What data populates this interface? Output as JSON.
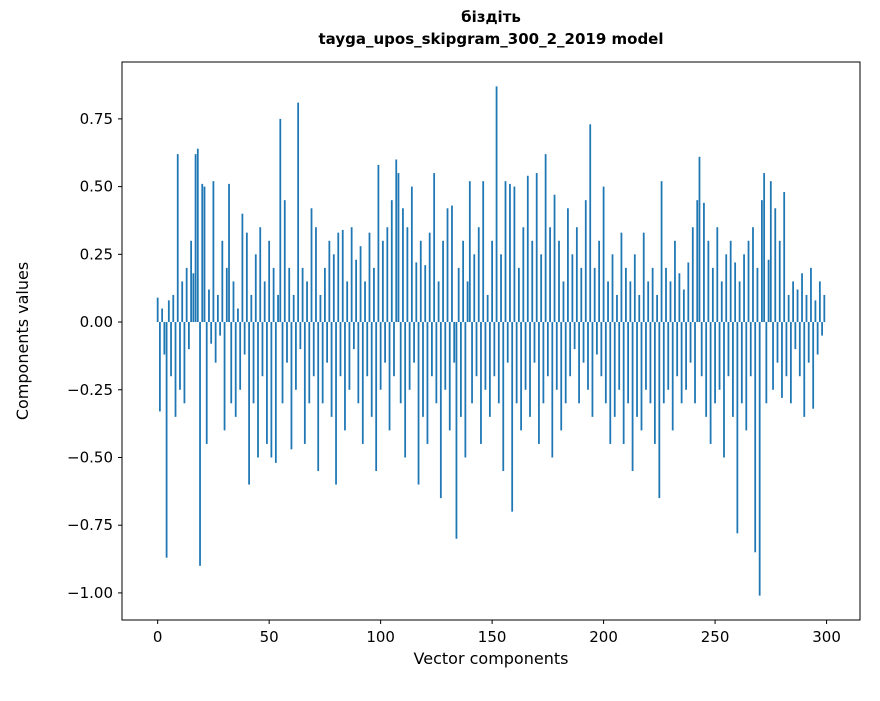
{
  "figure": {
    "background_color": "#ffffff",
    "spine_color": "#000000"
  },
  "chart_data": {
    "type": "bar",
    "title_line1": "біздіть",
    "title_line2": "tayga_upos_skipgram_300_2_2019 model",
    "xlabel": "Vector components",
    "ylabel": "Components values",
    "bar_color": "#1f77b4",
    "xlim": [
      -16,
      315
    ],
    "ylim": [
      -1.1,
      0.96
    ],
    "xticks": [
      0,
      50,
      100,
      150,
      200,
      250,
      300
    ],
    "xtick_labels": [
      "0",
      "50",
      "100",
      "150",
      "200",
      "250",
      "300"
    ],
    "yticks": [
      -1.0,
      -0.75,
      -0.5,
      -0.25,
      0.0,
      0.25,
      0.5,
      0.75
    ],
    "ytick_labels": [
      "−1.00",
      "−0.75",
      "−0.50",
      "−0.25",
      "0.00",
      "0.25",
      "0.50",
      "0.75"
    ],
    "legend": null,
    "grid": false,
    "values": [
      0.09,
      -0.33,
      0.05,
      -0.12,
      -0.87,
      0.08,
      -0.2,
      0.1,
      -0.35,
      0.62,
      -0.25,
      0.15,
      -0.3,
      0.2,
      -0.1,
      0.3,
      0.18,
      0.62,
      0.64,
      -0.9,
      0.51,
      0.5,
      -0.45,
      0.12,
      -0.08,
      0.52,
      -0.15,
      0.1,
      -0.05,
      0.3,
      -0.4,
      0.2,
      0.51,
      -0.3,
      0.15,
      -0.35,
      0.05,
      -0.25,
      0.4,
      -0.12,
      0.33,
      -0.6,
      0.1,
      -0.3,
      0.25,
      -0.5,
      0.35,
      -0.2,
      0.15,
      -0.45,
      0.3,
      -0.5,
      0.2,
      -0.52,
      0.1,
      0.75,
      -0.3,
      0.45,
      -0.15,
      0.2,
      -0.47,
      0.1,
      -0.25,
      0.81,
      -0.1,
      0.2,
      -0.45,
      0.15,
      -0.3,
      0.42,
      -0.2,
      0.35,
      -0.55,
      0.1,
      -0.3,
      0.2,
      -0.15,
      0.3,
      -0.35,
      0.25,
      -0.6,
      0.33,
      -0.2,
      0.34,
      -0.4,
      0.15,
      -0.25,
      0.35,
      -0.1,
      0.23,
      -0.3,
      0.28,
      -0.45,
      0.15,
      -0.2,
      0.33,
      -0.35,
      0.2,
      -0.55,
      0.58,
      -0.25,
      0.3,
      -0.15,
      0.35,
      -0.4,
      0.45,
      -0.2,
      0.6,
      0.55,
      -0.3,
      0.42,
      -0.5,
      0.35,
      -0.25,
      0.5,
      -0.15,
      0.22,
      -0.6,
      0.3,
      -0.35,
      0.21,
      -0.45,
      0.33,
      -0.2,
      0.55,
      -0.3,
      0.15,
      -0.65,
      0.3,
      -0.25,
      0.42,
      -0.4,
      0.43,
      -0.15,
      -0.8,
      0.2,
      -0.35,
      0.3,
      -0.5,
      0.15,
      0.52,
      -0.3,
      0.25,
      -0.2,
      0.35,
      -0.45,
      0.52,
      -0.25,
      0.1,
      -0.35,
      0.3,
      -0.2,
      0.87,
      -0.3,
      0.25,
      -0.55,
      0.52,
      -0.15,
      0.51,
      -0.7,
      0.5,
      -0.3,
      0.2,
      -0.4,
      0.35,
      -0.25,
      0.54,
      -0.35,
      0.3,
      -0.15,
      0.55,
      -0.45,
      0.25,
      -0.3,
      0.62,
      -0.2,
      0.35,
      -0.5,
      0.47,
      -0.25,
      0.3,
      -0.4,
      0.15,
      -0.3,
      0.42,
      -0.2,
      0.25,
      -0.1,
      0.35,
      -0.3,
      0.2,
      -0.15,
      0.45,
      -0.25,
      0.73,
      -0.35,
      0.2,
      -0.12,
      0.3,
      -0.2,
      0.5,
      -0.3,
      0.15,
      -0.45,
      0.25,
      -0.35,
      0.1,
      -0.25,
      0.33,
      -0.45,
      0.2,
      -0.3,
      0.15,
      -0.55,
      0.25,
      -0.35,
      0.1,
      -0.4,
      0.33,
      -0.25,
      0.15,
      -0.3,
      0.2,
      -0.45,
      0.1,
      -0.65,
      0.52,
      -0.3,
      0.2,
      -0.25,
      0.15,
      -0.4,
      0.3,
      -0.2,
      0.18,
      -0.3,
      0.12,
      -0.25,
      0.22,
      -0.15,
      0.35,
      -0.3,
      0.45,
      0.61,
      -0.2,
      0.44,
      -0.35,
      0.3,
      -0.45,
      0.2,
      -0.3,
      0.35,
      -0.25,
      0.15,
      -0.5,
      0.25,
      -0.2,
      0.3,
      -0.35,
      0.22,
      -0.78,
      0.15,
      -0.3,
      0.25,
      -0.4,
      0.3,
      -0.2,
      0.35,
      -0.85,
      0.2,
      -1.01,
      0.45,
      0.55,
      -0.3,
      0.23,
      0.52,
      -0.25,
      0.42,
      -0.15,
      0.3,
      -0.28,
      0.48,
      -0.2,
      0.1,
      -0.3,
      0.15,
      -0.1,
      0.12,
      -0.2,
      0.18,
      -0.35,
      0.1,
      -0.15,
      0.2,
      -0.32,
      0.08,
      -0.12,
      0.15,
      -0.05,
      0.1
    ]
  }
}
